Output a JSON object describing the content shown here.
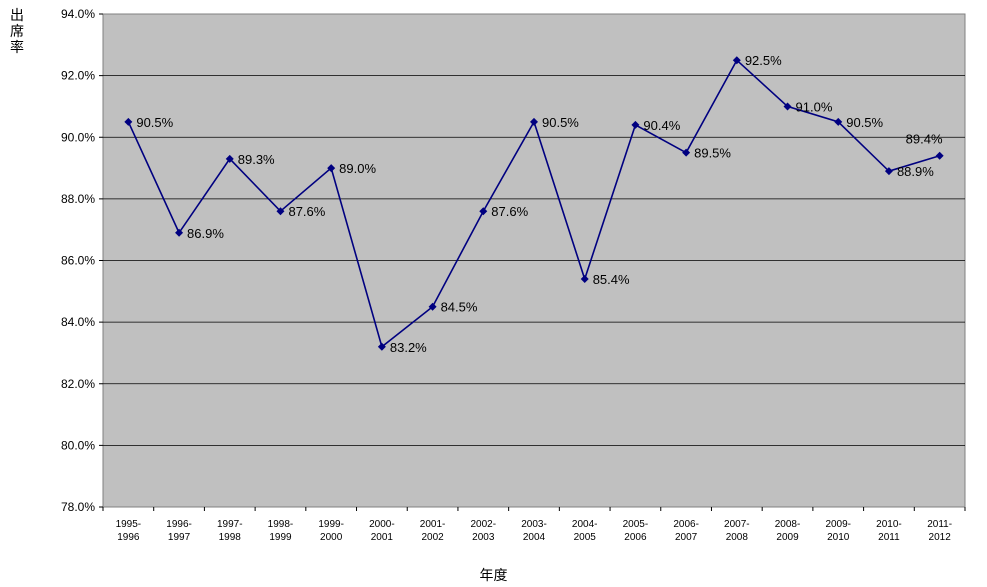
{
  "chart_data": {
    "type": "line",
    "title": "",
    "ylabel": "出席率",
    "xlabel": "年度",
    "ylim": [
      78.0,
      94.0
    ],
    "ytick_step": 2.0,
    "ytick_suffix": "%",
    "grid": true,
    "plot_background": "#c0c0c0",
    "line_color": "#000080",
    "categories": [
      [
        "1995-",
        "1996"
      ],
      [
        "1996-",
        "1997"
      ],
      [
        "1997-",
        "1998"
      ],
      [
        "1998-",
        "1999"
      ],
      [
        "1999-",
        "2000"
      ],
      [
        "2000-",
        "2001"
      ],
      [
        "2001-",
        "2002"
      ],
      [
        "2002-",
        "2003"
      ],
      [
        "2003-",
        "2004"
      ],
      [
        "2004-",
        "2005"
      ],
      [
        "2005-",
        "2006"
      ],
      [
        "2006-",
        "2007"
      ],
      [
        "2007-",
        "2008"
      ],
      [
        "2008-",
        "2009"
      ],
      [
        "2009-",
        "2010"
      ],
      [
        "2010-",
        "2011"
      ],
      [
        "2011-",
        "2012"
      ]
    ],
    "values": [
      90.5,
      86.9,
      89.3,
      87.6,
      89.0,
      83.2,
      84.5,
      87.6,
      90.5,
      85.4,
      90.4,
      89.5,
      92.5,
      91.0,
      90.5,
      88.9,
      89.4
    ],
    "data_labels": [
      "90.5%",
      "86.9%",
      "89.3%",
      "87.6%",
      "89.0%",
      "83.2%",
      "84.5%",
      "87.6%",
      "90.5%",
      "85.4%",
      "90.4%",
      "89.5%",
      "92.5%",
      "91.0%",
      "90.5%",
      "88.9%",
      "89.4%"
    ]
  }
}
